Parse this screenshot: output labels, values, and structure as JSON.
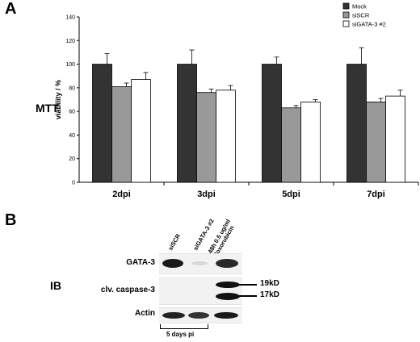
{
  "panel_a": {
    "letter": "A",
    "side_label": "MTT"
  },
  "chart_data": {
    "type": "bar",
    "categories": [
      "2dpi",
      "3dpi",
      "5dpi",
      "7dpi"
    ],
    "series": [
      {
        "name": "Mock",
        "color": "#333333",
        "values": [
          100,
          100,
          100,
          100
        ],
        "errors": [
          9,
          12,
          6,
          14
        ]
      },
      {
        "name": "siSCR",
        "color": "#999999",
        "values": [
          81,
          76,
          63,
          68
        ],
        "errors": [
          3,
          3,
          2,
          3
        ]
      },
      {
        "name": "siGATA-3 #2",
        "color": "#ffffff",
        "values": [
          87,
          78,
          68,
          73
        ],
        "errors": [
          6,
          4,
          2,
          5
        ]
      }
    ],
    "ylabel": "viability / %",
    "xlabel": "",
    "ylim": [
      0,
      140
    ],
    "yticks": [
      0,
      20,
      40,
      60,
      80,
      100,
      120,
      140
    ],
    "legend_position": "top-right",
    "grid": false
  },
  "panel_b": {
    "letter": "B",
    "side_label": "IB",
    "lanes": [
      {
        "label": "siSCR"
      },
      {
        "label": "siGATA-3 #2"
      },
      {
        "label": "48h 0.5 ug/ml\ndoxorubicin"
      }
    ],
    "rows": [
      {
        "label": "GATA-3"
      },
      {
        "label": "clv. caspase-3"
      },
      {
        "label": "Actin"
      }
    ],
    "markers": [
      "19kD",
      "17kD"
    ],
    "footer": "5 days pi"
  }
}
